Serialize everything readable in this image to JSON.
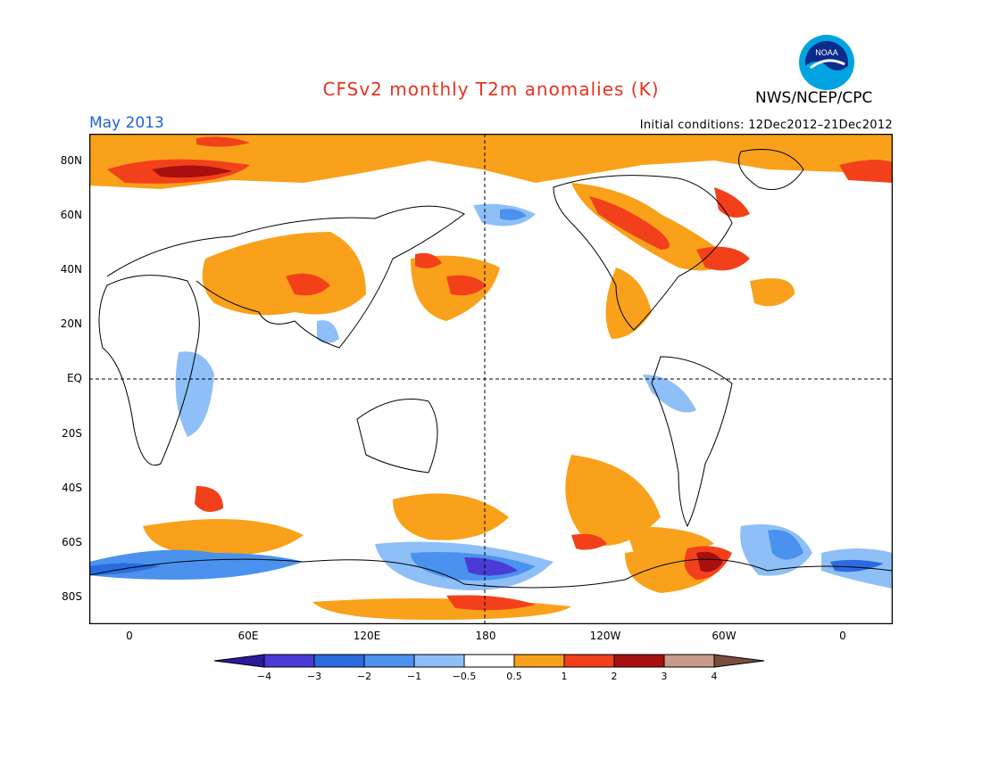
{
  "title": "CFSv2 monthly T2m anomalies (K)",
  "month": "May 2013",
  "initial_conditions": "Initial conditions: 12Dec2012–21Dec2012",
  "agency": "NWS/NCEP/CPC",
  "logo_text": "NOAA",
  "lat_labels": [
    "80N",
    "60N",
    "40N",
    "20N",
    "EQ",
    "20S",
    "40S",
    "60S",
    "80S"
  ],
  "lon_labels": [
    "0",
    "60E",
    "120E",
    "180",
    "120W",
    "60W",
    "0"
  ],
  "colorbar": {
    "labels": [
      "−4",
      "−3",
      "−2",
      "−1",
      "−0.5",
      "0.5",
      "1",
      "2",
      "3",
      "4"
    ],
    "colors": [
      "#2a1a99",
      "#4a3ad6",
      "#2a6ce0",
      "#4a92ee",
      "#8ebff6",
      "#ffffff",
      "#f9a11a",
      "#f2411a",
      "#a80f0f",
      "#c89b8a",
      "#7a4e3f"
    ]
  },
  "colors": {
    "title": "#e8321e",
    "month": "#1f5fd8",
    "orange": "#f9a11a",
    "red": "#f2411a",
    "darkred": "#a80f0f",
    "lightblue": "#8ebff6",
    "blue": "#4a92ee",
    "dblue": "#2a6ce0",
    "purple": "#4a3ad6"
  }
}
